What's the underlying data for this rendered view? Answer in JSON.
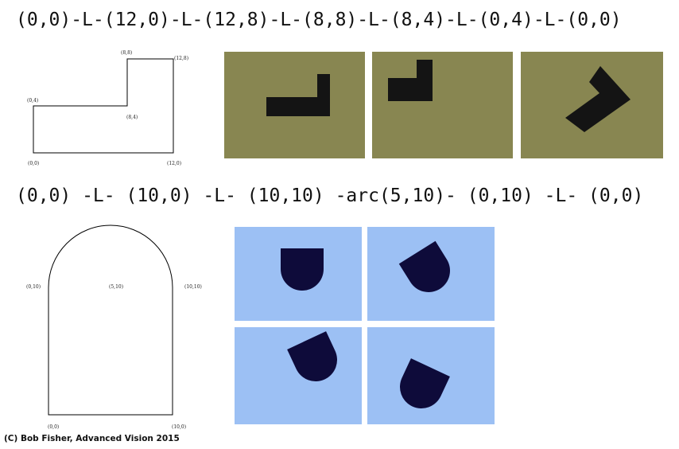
{
  "shape1": {
    "description": "(0,0)-L-(12,0)-L-(12,8)-L-(8,8)-L-(8,4)-L-(0,4)-L-(0,0)",
    "labels": {
      "p00": "(0,0)",
      "p120": "(12,0)",
      "p128": "(12,8)",
      "p88": "(8,8)",
      "p84": "(8,4)",
      "p04": "(0,4)"
    }
  },
  "shape2": {
    "description": "(0,0) -L- (10,0) -L- (10,10) -arc(5,10)- (0,10) -L- (0,0)",
    "labels": {
      "p00": "(0,0)",
      "p100": "(10,0)",
      "p1010": "(10,10)",
      "p510": "(5,10)",
      "p010": "(0,10)"
    }
  },
  "colors": {
    "olive_background": "#888651",
    "blue_background": "#9cc0f4",
    "shape_dark": "#141414",
    "shape_navy": "#0e0b3a"
  },
  "credit": "(C) Bob Fisher, Advanced Vision 2015"
}
